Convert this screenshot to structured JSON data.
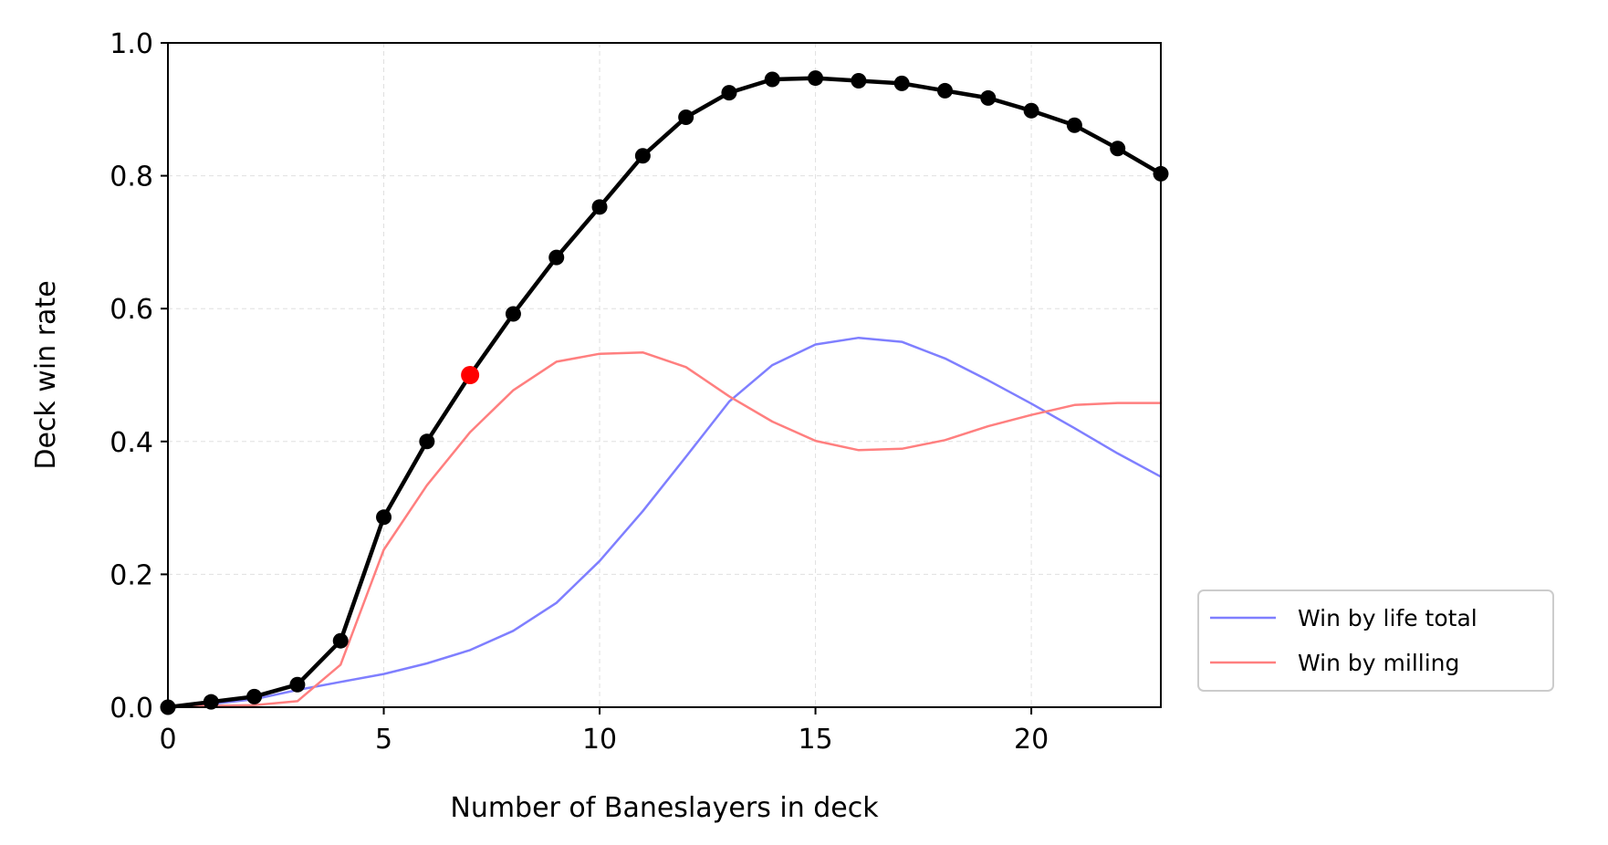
{
  "chart_data": {
    "type": "line",
    "title": "",
    "xlabel": "Number of Baneslayers in deck",
    "ylabel": "Deck win rate",
    "xlim": [
      0,
      23
    ],
    "ylim": [
      0,
      1.0
    ],
    "xticks": [
      0,
      5,
      10,
      15,
      20
    ],
    "xtick_labels": [
      "0",
      "5",
      "10",
      "15",
      "20"
    ],
    "yticks": [
      0.0,
      0.2,
      0.4,
      0.6,
      0.8,
      1.0
    ],
    "ytick_labels": [
      "0.0",
      "0.2",
      "0.4",
      "0.6",
      "0.8",
      "1.0"
    ],
    "grid": true,
    "legend_position": "outside lower right",
    "x": [
      0,
      1,
      2,
      3,
      4,
      5,
      6,
      7,
      8,
      9,
      10,
      11,
      12,
      13,
      14,
      15,
      16,
      17,
      18,
      19,
      20,
      21,
      22,
      23
    ],
    "series": [
      {
        "color": "#000000",
        "markers": true,
        "values": [
          0.0,
          0.008,
          0.016,
          0.034,
          0.1,
          0.286,
          0.4,
          0.5,
          0.592,
          0.677,
          0.753,
          0.83,
          0.888,
          0.925,
          0.945,
          0.947,
          0.943,
          0.939,
          0.928,
          0.917,
          0.898,
          0.876,
          0.841,
          0.803
        ]
      },
      {
        "name": "Win by life total",
        "color": "#7f7fff",
        "markers": false,
        "values": [
          0.0,
          0.005,
          0.012,
          0.026,
          0.038,
          0.05,
          0.066,
          0.086,
          0.115,
          0.157,
          0.22,
          0.295,
          0.377,
          0.46,
          0.515,
          0.546,
          0.556,
          0.55,
          0.525,
          0.492,
          0.457,
          0.42,
          0.382,
          0.347
        ]
      },
      {
        "name": "Win by milling",
        "color": "#ff7f7f",
        "markers": false,
        "values": [
          0.0,
          0.002,
          0.003,
          0.009,
          0.064,
          0.237,
          0.334,
          0.414,
          0.477,
          0.52,
          0.532,
          0.534,
          0.512,
          0.468,
          0.43,
          0.401,
          0.387,
          0.389,
          0.402,
          0.423,
          0.44,
          0.455,
          0.458,
          0.458
        ]
      }
    ],
    "highlight_point": {
      "x": 7,
      "y": 0.5,
      "color": "#ff0000"
    },
    "legend": [
      "Win by life total",
      "Win by milling"
    ]
  }
}
